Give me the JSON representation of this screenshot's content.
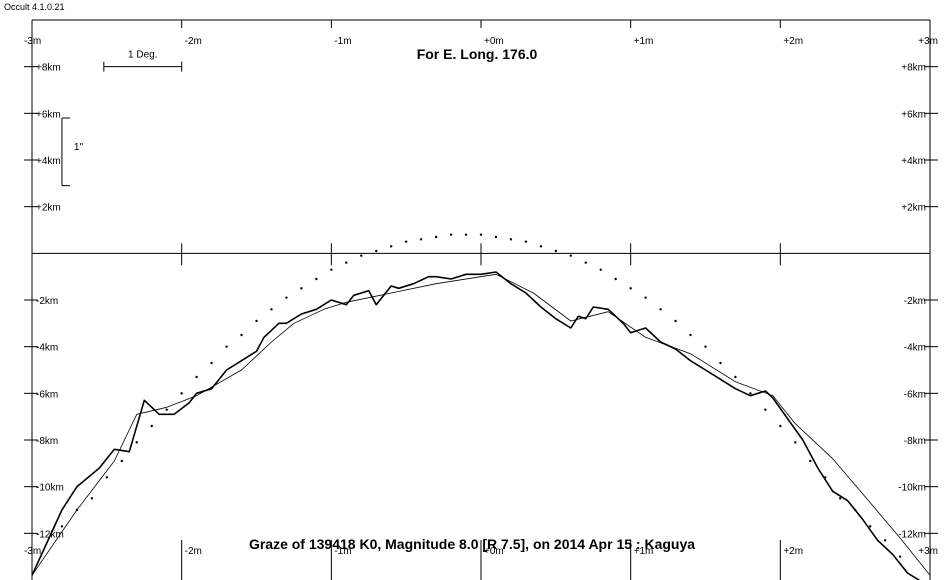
{
  "app": {
    "title": "Occult 4.1.0.21"
  },
  "chart_data": {
    "type": "line",
    "title": "For E. Long. 176.0",
    "subtitle": "Graze of  139418 K0,  Magnitude 8.0 [R 7.5],  on 2014 Apr 15  :  Kaguya",
    "x_ticks": [
      "-3m",
      "-2m",
      "-1m",
      "+0m",
      "+1m",
      "+2m",
      "+3m"
    ],
    "y_ticks": [
      "+8km",
      "+6km",
      "+4km",
      "+2km",
      "-2km",
      "-4km",
      "-6km",
      "-8km",
      "-10km",
      "-12km"
    ],
    "xlim": [
      -3,
      3
    ],
    "ylim": [
      -14,
      10
    ],
    "scale_bars": {
      "degree": "1 Deg.",
      "arcsec": "1\""
    },
    "grid": false,
    "series": [
      {
        "style": "thick",
        "x": [
          -3.0,
          -2.8,
          -2.7,
          -2.55,
          -2.45,
          -2.35,
          -2.25,
          -2.15,
          -2.05,
          -1.95,
          -1.9,
          -1.8,
          -1.7,
          -1.6,
          -1.5,
          -1.45,
          -1.4,
          -1.35,
          -1.3,
          -1.2,
          -1.1,
          -1.0,
          -0.9,
          -0.85,
          -0.75,
          -0.7,
          -0.6,
          -0.55,
          -0.45,
          -0.35,
          -0.3,
          -0.2,
          -0.1,
          0.0,
          0.1,
          0.2,
          0.3,
          0.4,
          0.5,
          0.6,
          0.65,
          0.7,
          0.75,
          0.85,
          0.95,
          1.0,
          1.1,
          1.2,
          1.3,
          1.4,
          1.5,
          1.6,
          1.7,
          1.8,
          1.9,
          1.95,
          2.05,
          2.15,
          2.25,
          2.35,
          2.45,
          2.55,
          2.65,
          2.75,
          2.85,
          2.95
        ],
        "y": [
          -13.8,
          -11.0,
          -10.0,
          -9.2,
          -8.4,
          -8.5,
          -6.3,
          -6.9,
          -6.9,
          -6.4,
          -6.0,
          -5.8,
          -5.0,
          -4.6,
          -4.2,
          -3.6,
          -3.3,
          -3.0,
          -3.0,
          -2.6,
          -2.4,
          -2.0,
          -2.2,
          -1.8,
          -1.6,
          -2.2,
          -1.4,
          -1.5,
          -1.3,
          -1.0,
          -1.0,
          -1.1,
          -0.9,
          -0.9,
          -0.8,
          -1.3,
          -1.7,
          -2.3,
          -2.8,
          -3.2,
          -2.7,
          -2.8,
          -2.3,
          -2.4,
          -3.0,
          -3.4,
          -3.2,
          -3.8,
          -4.1,
          -4.6,
          -5.0,
          -5.4,
          -5.8,
          -6.1,
          -5.9,
          -6.2,
          -7.1,
          -8.0,
          -9.2,
          -10.2,
          -10.6,
          -11.4,
          -12.3,
          -12.9,
          -13.7,
          -14.1
        ]
      },
      {
        "style": "thin",
        "x": [
          -3.0,
          -2.7,
          -2.45,
          -2.3,
          -2.1,
          -1.9,
          -1.6,
          -1.4,
          -1.25,
          -1.05,
          -0.9,
          -0.6,
          -0.3,
          0.1,
          0.35,
          0.6,
          0.85,
          1.1,
          1.4,
          1.7,
          1.95,
          2.1,
          2.35,
          2.55,
          2.8,
          3.0
        ],
        "y": [
          -13.8,
          -11.0,
          -8.9,
          -6.9,
          -6.6,
          -6.1,
          -5.0,
          -3.8,
          -3.0,
          -2.4,
          -2.1,
          -1.7,
          -1.3,
          -0.9,
          -1.7,
          -2.9,
          -2.5,
          -3.6,
          -4.3,
          -5.5,
          -6.1,
          -7.3,
          -8.8,
          -10.3,
          -12.2,
          -13.8
        ]
      },
      {
        "style": "dots",
        "x": [
          -2.8,
          -2.7,
          -2.6,
          -2.5,
          -2.4,
          -2.3,
          -2.2,
          -2.1,
          -2.0,
          -1.9,
          -1.8,
          -1.7,
          -1.6,
          -1.5,
          -1.4,
          -1.3,
          -1.2,
          -1.1,
          -1.0,
          -0.9,
          -0.8,
          -0.7,
          -0.6,
          -0.5,
          -0.4,
          -0.3,
          -0.2,
          -0.1,
          0.0,
          0.1,
          0.2,
          0.3,
          0.4,
          0.5,
          0.6,
          0.7,
          0.8,
          0.9,
          1.0,
          1.1,
          1.2,
          1.3,
          1.4,
          1.5,
          1.6,
          1.7,
          1.8,
          1.9,
          2.0,
          2.1,
          2.2,
          2.3,
          2.4,
          2.5,
          2.6,
          2.7,
          2.8
        ],
        "y": [
          -11.7,
          -11.0,
          -10.5,
          -9.6,
          -8.9,
          -8.1,
          -7.4,
          -6.7,
          -6.0,
          -5.3,
          -4.7,
          -4.0,
          -3.5,
          -2.9,
          -2.4,
          -1.9,
          -1.5,
          -1.1,
          -0.7,
          -0.4,
          -0.1,
          0.1,
          0.3,
          0.5,
          0.6,
          0.7,
          0.8,
          0.8,
          0.8,
          0.7,
          0.6,
          0.5,
          0.3,
          0.1,
          -0.1,
          -0.4,
          -0.7,
          -1.1,
          -1.5,
          -1.9,
          -2.4,
          -2.9,
          -3.5,
          -4.0,
          -4.7,
          -5.3,
          -6.0,
          -6.7,
          -7.4,
          -8.1,
          -8.9,
          -9.6,
          -10.5,
          -11.0,
          -11.7,
          -12.3,
          -13.0
        ]
      }
    ]
  }
}
